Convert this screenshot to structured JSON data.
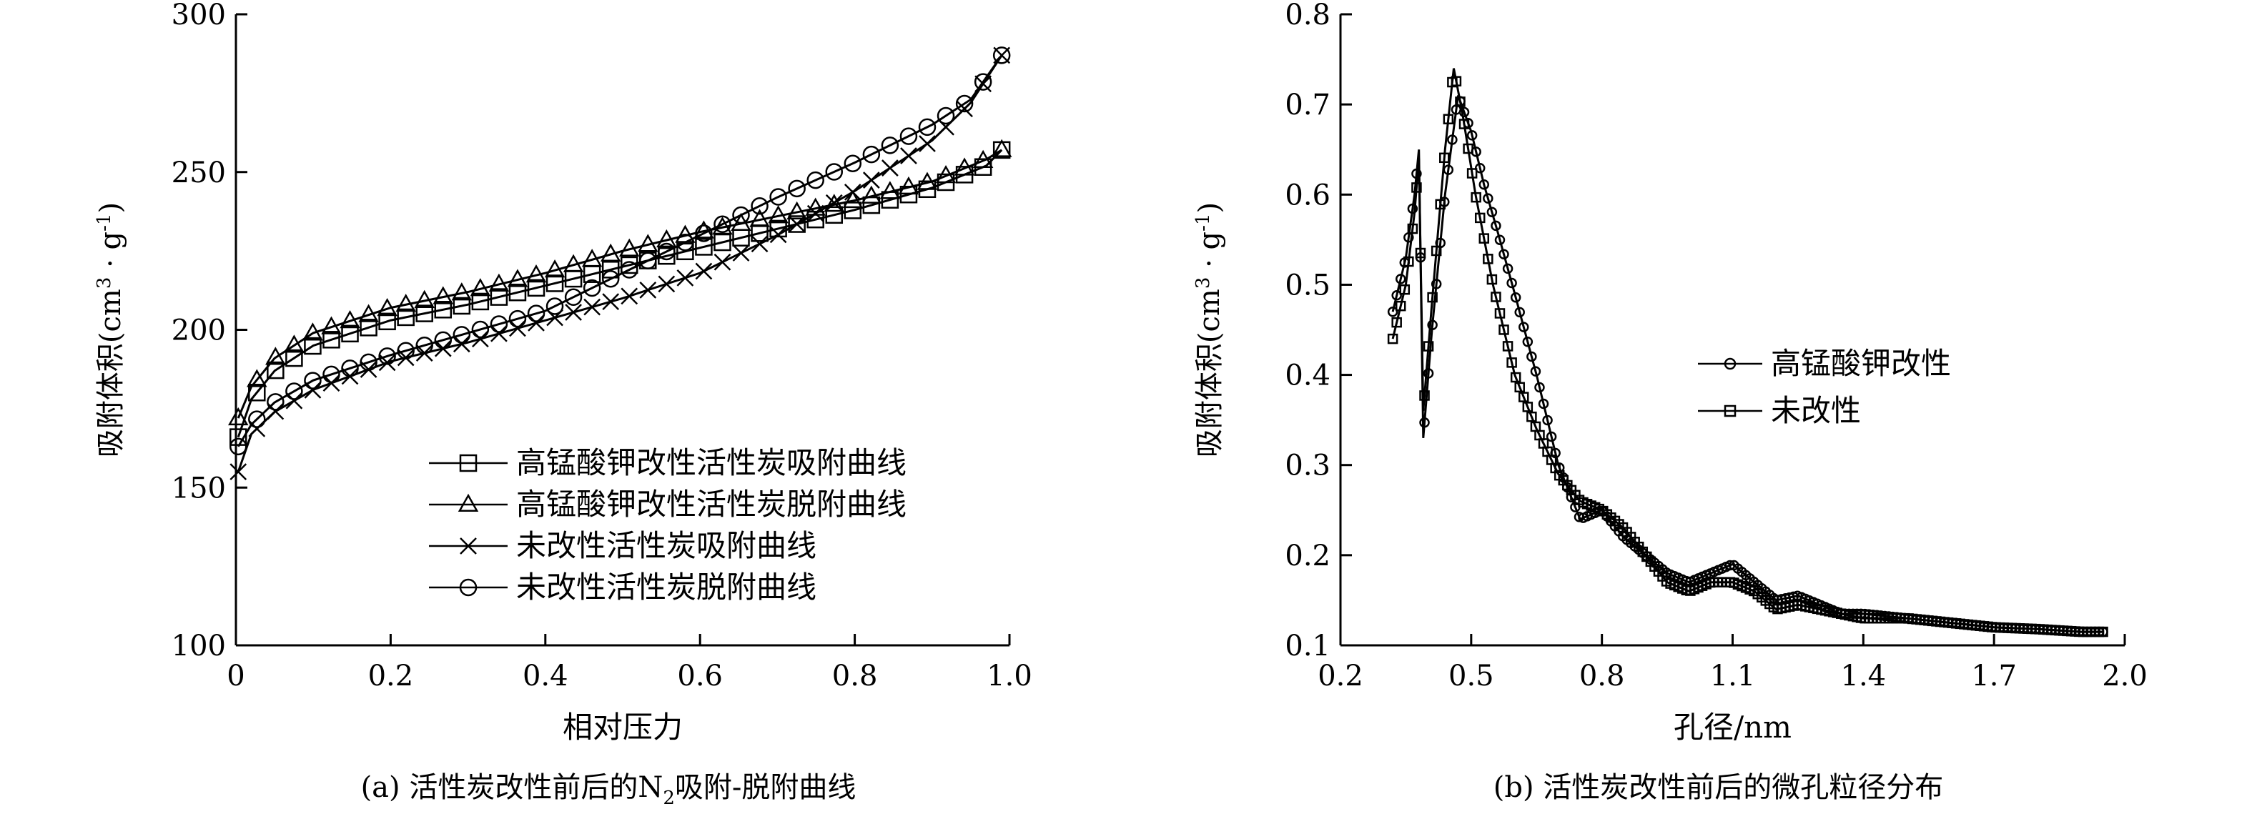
{
  "chart_data": [
    {
      "type": "line",
      "caption": "(a) 活性炭改性前后的N2吸附-脱附曲线",
      "xlabel": "相对压力",
      "ylabel": "吸附体积(cm3·g-1)",
      "xlim": [
        0,
        1.0
      ],
      "ylim": [
        100,
        300
      ],
      "x_ticks": [
        "0",
        "0.2",
        "0.4",
        "0.6",
        "0.8",
        "1.0"
      ],
      "y_ticks": [
        "100",
        "150",
        "200",
        "250",
        "300"
      ],
      "grid": false,
      "legend_position": "lower-right",
      "series": [
        {
          "name": "高锰酸钾改性活性炭吸附曲线",
          "marker": "square",
          "x": [
            0.003,
            0.02,
            0.05,
            0.1,
            0.2,
            0.3,
            0.4,
            0.5,
            0.6,
            0.7,
            0.8,
            0.9,
            0.97,
            0.99
          ],
          "y": [
            166,
            178,
            187,
            195,
            203,
            208,
            214,
            220,
            226,
            232,
            238,
            245,
            252,
            257
          ]
        },
        {
          "name": "高锰酸钾改性活性炭脱附曲线",
          "marker": "triangle",
          "x": [
            0.003,
            0.02,
            0.05,
            0.1,
            0.2,
            0.3,
            0.4,
            0.5,
            0.6,
            0.7,
            0.8,
            0.9,
            0.97,
            0.99
          ],
          "y": [
            172,
            182,
            191,
            199,
            207,
            212,
            218,
            225,
            231,
            236,
            241,
            247,
            254,
            257
          ]
        },
        {
          "name": "未改性活性炭吸附曲线",
          "marker": "cross",
          "x": [
            0.003,
            0.02,
            0.05,
            0.1,
            0.2,
            0.3,
            0.4,
            0.5,
            0.6,
            0.7,
            0.8,
            0.9,
            0.95,
            0.99
          ],
          "y": [
            155,
            167,
            174,
            181,
            190,
            196,
            203,
            210,
            218,
            230,
            244,
            260,
            272,
            287
          ]
        },
        {
          "name": "未改性活性炭脱附曲线",
          "marker": "circle",
          "x": [
            0.003,
            0.02,
            0.05,
            0.1,
            0.2,
            0.3,
            0.4,
            0.5,
            0.6,
            0.7,
            0.8,
            0.9,
            0.95,
            0.99
          ],
          "y": [
            163,
            170,
            177,
            184,
            192,
            199,
            206,
            218,
            230,
            242,
            253,
            265,
            273,
            287
          ]
        }
      ]
    },
    {
      "type": "line",
      "caption": "(b) 活性炭改性前后的微孔粒径分布",
      "xlabel": "孔径/nm",
      "ylabel": "吸附体积(cm3·g-1)",
      "xlim": [
        0.2,
        2.0
      ],
      "ylim": [
        0.1,
        0.8
      ],
      "x_ticks": [
        "0.2",
        "0.5",
        "0.8",
        "1.1",
        "1.4",
        "1.7",
        "2.0"
      ],
      "y_ticks": [
        "0.1",
        "0.2",
        "0.3",
        "0.4",
        "0.5",
        "0.6",
        "0.7",
        "0.8"
      ],
      "grid": false,
      "legend_position": "right",
      "series": [
        {
          "name": "高锰酸钾改性",
          "marker": "circle",
          "x": [
            0.32,
            0.35,
            0.37,
            0.38,
            0.39,
            0.41,
            0.44,
            0.47,
            0.5,
            0.53,
            0.56,
            0.6,
            0.65,
            0.7,
            0.75,
            0.8,
            0.85,
            0.9,
            0.95,
            1.0,
            1.05,
            1.1,
            1.15,
            1.2,
            1.25,
            1.3,
            1.35,
            1.4,
            1.5,
            1.6,
            1.7,
            1.8,
            1.9,
            1.95
          ],
          "y": [
            0.47,
            0.53,
            0.6,
            0.65,
            0.33,
            0.45,
            0.6,
            0.71,
            0.67,
            0.61,
            0.56,
            0.49,
            0.4,
            0.3,
            0.24,
            0.25,
            0.22,
            0.2,
            0.18,
            0.17,
            0.18,
            0.19,
            0.17,
            0.15,
            0.155,
            0.145,
            0.135,
            0.135,
            0.13,
            0.125,
            0.12,
            0.118,
            0.115,
            0.115
          ]
        },
        {
          "name": "未改性",
          "marker": "square",
          "x": [
            0.32,
            0.35,
            0.37,
            0.38,
            0.39,
            0.41,
            0.44,
            0.46,
            0.48,
            0.51,
            0.55,
            0.6,
            0.65,
            0.7,
            0.75,
            0.8,
            0.85,
            0.9,
            0.95,
            1.0,
            1.05,
            1.1,
            1.15,
            1.2,
            1.25,
            1.3,
            1.35,
            1.4,
            1.5,
            1.6,
            1.7,
            1.8,
            1.9,
            1.95
          ],
          "y": [
            0.44,
            0.5,
            0.58,
            0.64,
            0.36,
            0.48,
            0.65,
            0.74,
            0.69,
            0.6,
            0.5,
            0.4,
            0.34,
            0.29,
            0.26,
            0.25,
            0.23,
            0.2,
            0.17,
            0.16,
            0.17,
            0.17,
            0.16,
            0.14,
            0.145,
            0.14,
            0.135,
            0.13,
            0.13,
            0.125,
            0.12,
            0.118,
            0.115,
            0.115
          ]
        }
      ]
    }
  ]
}
